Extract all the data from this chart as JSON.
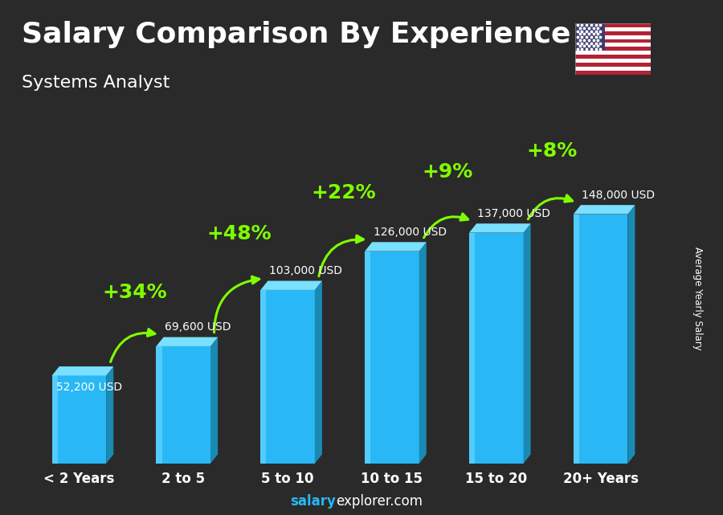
{
  "title": "Salary Comparison By Experience",
  "subtitle": "Systems Analyst",
  "categories": [
    "< 2 Years",
    "2 to 5",
    "5 to 10",
    "10 to 15",
    "15 to 20",
    "20+ Years"
  ],
  "values": [
    52200,
    69600,
    103000,
    126000,
    137000,
    148000
  ],
  "value_labels": [
    "52,200 USD",
    "69,600 USD",
    "103,000 USD",
    "126,000 USD",
    "137,000 USD",
    "148,000 USD"
  ],
  "pct_changes": [
    "+34%",
    "+48%",
    "+22%",
    "+9%",
    "+8%"
  ],
  "bar_face_color": "#29b8f5",
  "bar_left_color": "#5ad0ff",
  "bar_top_color": "#7ae0ff",
  "bar_side_color": "#1a8ab5",
  "bar_bottom_shade": "#1070a0",
  "bg_color": "#2a2a2a",
  "text_color_white": "#ffffff",
  "text_color_label": "#dddddd",
  "arrow_color": "#7fff00",
  "ylabel": "Average Yearly Salary",
  "footer_bold": "salary",
  "footer_normal": "explorer.com",
  "title_fontsize": 26,
  "subtitle_fontsize": 16,
  "val_label_fontsize": 10,
  "pct_fontsize": 18,
  "xtick_fontsize": 12
}
